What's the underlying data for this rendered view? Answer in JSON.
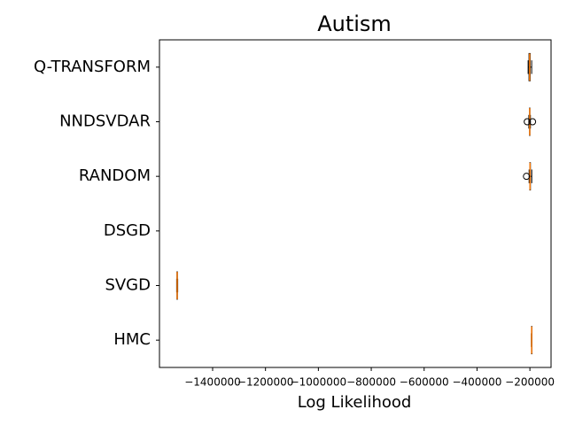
{
  "chart_data": {
    "type": "boxplot",
    "title": "Autism",
    "xlabel": "Log Likelihood",
    "orientation": "horizontal",
    "categories": [
      "HMC",
      "SVGD",
      "DSGD",
      "RANDOM",
      "NNDSVDAR",
      "Q-TRANSFORM"
    ],
    "boxes": [
      {
        "min": -194500,
        "q1": -193800,
        "median": -193300,
        "q3": -192800,
        "max": -192000,
        "fliers": []
      },
      {
        "min": -1536000,
        "q1": -1535000,
        "median": -1534000,
        "q3": -1533000,
        "max": -1532000,
        "fliers": []
      },
      {
        "min": null,
        "q1": null,
        "median": null,
        "q3": null,
        "max": null,
        "fliers": []
      },
      {
        "min": -203000,
        "q1": -200500,
        "median": -199500,
        "q3": -198000,
        "max": -193000,
        "fliers": [
          -213000
        ]
      },
      {
        "min": -204000,
        "q1": -201500,
        "median": -200700,
        "q3": -200000,
        "max": -198000,
        "fliers": [
          -210000,
          -190000
        ]
      },
      {
        "min": -206700,
        "q1": -203400,
        "median": -201000,
        "q3": -199000,
        "max": -193300,
        "fliers": []
      }
    ],
    "box_color": "#000000",
    "median_color": "#ff7f0e",
    "xlim": [
      -1601000,
      -120000
    ],
    "xticks": [
      {
        "value": -1400000,
        "label": "−1400000"
      },
      {
        "value": -1200000,
        "label": "−1200000"
      },
      {
        "value": -1000000,
        "label": "−1000000"
      },
      {
        "value": -800000,
        "label": "−800000"
      },
      {
        "value": -600000,
        "label": "−600000"
      },
      {
        "value": -400000,
        "label": "−400000"
      },
      {
        "value": -200000,
        "label": "−200000"
      }
    ]
  }
}
